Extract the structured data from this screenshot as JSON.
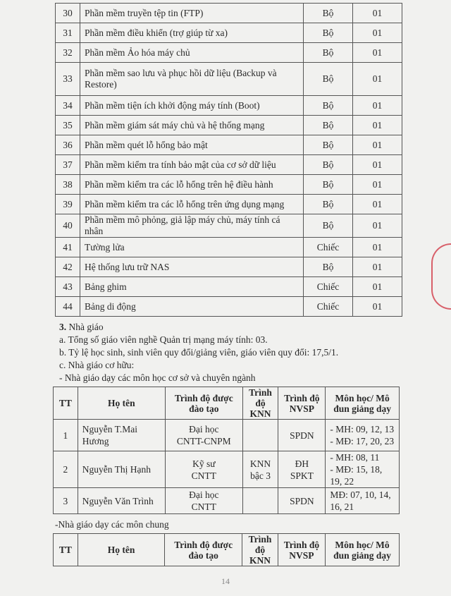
{
  "equipment": [
    {
      "tt": "30",
      "name": "Phần mềm truyền tệp tin (FTP)",
      "unit": "Bộ",
      "qty": "01"
    },
    {
      "tt": "31",
      "name": "Phần mềm điều khiển (trợ giúp từ xa)",
      "unit": "Bộ",
      "qty": "01"
    },
    {
      "tt": "32",
      "name": "Phần mềm Ảo hóa máy chủ",
      "unit": "Bộ",
      "qty": "01"
    },
    {
      "tt": "33",
      "name": "Phần mềm sao lưu và phục hồi dữ liệu (Backup và Restore)",
      "unit": "Bộ",
      "qty": "01"
    },
    {
      "tt": "34",
      "name": "Phần mềm tiện ích khởi động máy tính (Boot)",
      "unit": "Bộ",
      "qty": "01"
    },
    {
      "tt": "35",
      "name": "Phần mềm giám sát máy chủ và hệ thống mạng",
      "unit": "Bộ",
      "qty": "01"
    },
    {
      "tt": "36",
      "name": "Phần mềm quét lỗ hổng bảo mật",
      "unit": "Bộ",
      "qty": "01"
    },
    {
      "tt": "37",
      "name": "Phần mềm kiểm tra tính bảo mật của cơ sở dữ liệu",
      "unit": "Bộ",
      "qty": "01"
    },
    {
      "tt": "38",
      "name": "Phần mềm kiểm tra  các lỗ hổng trên hệ điều hành",
      "unit": "Bộ",
      "qty": "01"
    },
    {
      "tt": "39",
      "name": "Phần mềm kiểm tra  các lỗ hổng trên ứng dụng mạng",
      "unit": "Bộ",
      "qty": "01"
    },
    {
      "tt": "40",
      "name": "Phần mềm mô phỏng, giả lập máy chủ, máy tính cá nhân",
      "unit": "Bộ",
      "qty": "01"
    },
    {
      "tt": "41",
      "name": "Tường lửa",
      "unit": "Chiếc",
      "qty": "01"
    },
    {
      "tt": "42",
      "name": "Hệ thống lưu trữ NAS",
      "unit": "Bộ",
      "qty": "01"
    },
    {
      "tt": "43",
      "name": "Bảng ghim",
      "unit": "Chiếc",
      "qty": "01"
    },
    {
      "tt": "44",
      "name": "Bảng di động",
      "unit": "Chiếc",
      "qty": "01"
    }
  ],
  "section": {
    "num": "3.",
    "title": "Nhà giáo",
    "a": "a. Tổng số giáo viên nghề Quản trị mạng máy tính: 03.",
    "b": "b. Tỷ lệ học sinh, sinh viên quy đổi/giảng viên, giáo viên quy đổi: 17,5/1.",
    "c": "c. Nhà giáo cơ hữu:",
    "sub1": "- Nhà giáo dạy các môn học cơ sở và chuyên ngành",
    "sub2": "-Nhà giáo dạy các môn chung"
  },
  "teacher_headers": [
    "TT",
    "Họ tên",
    "Trình độ được đào tạo",
    "Trình độ KNN",
    "Trình độ NVSP",
    "Môn học/ Mô đun giảng dạy"
  ],
  "teachers": [
    {
      "tt": "1",
      "name": "Nguyễn T.Mai Hương",
      "training": [
        "Đại học",
        "CNTT-CNPM"
      ],
      "knn": [
        ""
      ],
      "nvsp": [
        "SPDN"
      ],
      "subjects": [
        "- MH: 09, 12, 13",
        "- MĐ: 17, 20, 23"
      ]
    },
    {
      "tt": "2",
      "name": "Nguyễn Thị Hạnh",
      "training": [
        "Kỹ sư",
        "CNTT"
      ],
      "knn": [
        "KNN",
        "bậc 3"
      ],
      "nvsp": [
        "ĐH",
        "SPKT"
      ],
      "subjects": [
        "- MH: 08, 11",
        "- MĐ: 15, 18, 19, 22"
      ]
    },
    {
      "tt": "3",
      "name": "Nguyễn Văn Trình",
      "training": [
        "Đại học",
        "CNTT"
      ],
      "knn": [
        ""
      ],
      "nvsp": [
        "SPDN"
      ],
      "subjects": [
        "MĐ: 07, 10, 14,",
        "16, 21"
      ]
    }
  ],
  "page_number": "14",
  "stamp_color": "#d8606a"
}
